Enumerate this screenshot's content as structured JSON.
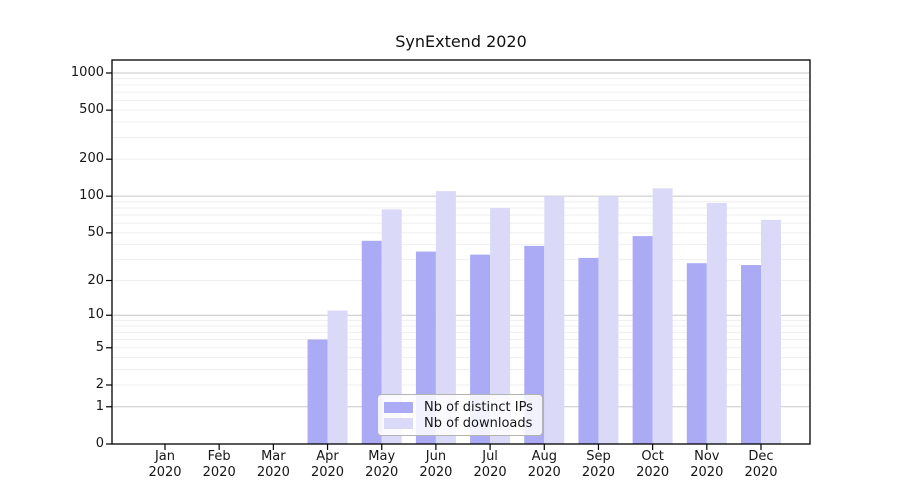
{
  "chart_data": {
    "type": "bar",
    "title": "SynExtend 2020",
    "categories": [
      "Jan",
      "Feb",
      "Mar",
      "Apr",
      "May",
      "Jun",
      "Jul",
      "Aug",
      "Sep",
      "Oct",
      "Nov",
      "Dec"
    ],
    "x_tick_year": "2020",
    "series": [
      {
        "name": "Nb of distinct IPs",
        "color": "#aaaaf5",
        "values": [
          0,
          0,
          0,
          6,
          43,
          35,
          33,
          39,
          31,
          47,
          28,
          27
        ]
      },
      {
        "name": "Nb of downloads",
        "color": "#dadaf8",
        "values": [
          0,
          0,
          0,
          11,
          78,
          110,
          80,
          100,
          100,
          116,
          88,
          64
        ]
      }
    ],
    "yscale": "log1p",
    "y_tick_labels": [
      "0",
      "1",
      "2",
      "5",
      "10",
      "20",
      "50",
      "100",
      "200",
      "500",
      "1000"
    ],
    "y_tick_values": [
      0,
      1,
      2,
      5,
      10,
      20,
      50,
      100,
      200,
      500,
      1000
    ],
    "ylim": [
      0,
      1100
    ],
    "grid": true,
    "legend_position": "bottom-center",
    "colors": {
      "major_grid": "#c8c8c8",
      "minor_grid": "#efefef",
      "axis": "#000000",
      "background": "#ffffff"
    }
  }
}
